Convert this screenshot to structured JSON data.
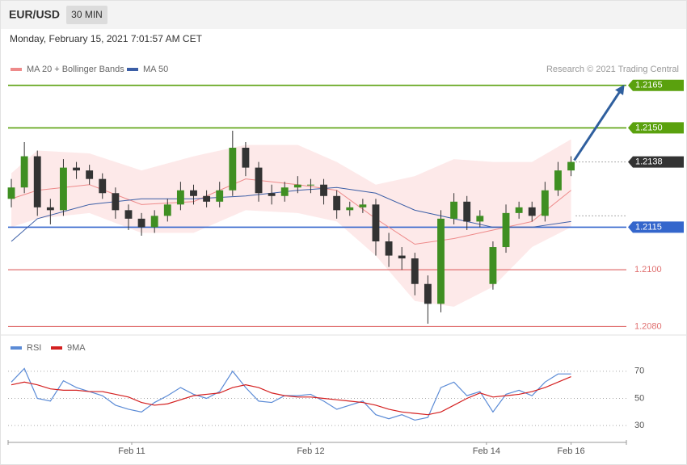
{
  "chart_data": [
    {
      "type": "candlestick",
      "title": "EUR/USD",
      "timeframe": "30 MIN",
      "subtitle": "Monday, February 15, 2021 7:01:57 AM CET",
      "credit": "Research © 2021 Trading Central",
      "xlim": [
        0,
        190
      ],
      "ylim": [
        1.2077,
        1.2178
      ],
      "up_color": "#3f8f22",
      "down_color": "#333333",
      "x": [
        1,
        5,
        9,
        13,
        17,
        21,
        25,
        29,
        33,
        37,
        41,
        45,
        49,
        53,
        57,
        61,
        65,
        69,
        73,
        77,
        81,
        85,
        89,
        93,
        97,
        101,
        105,
        109,
        113,
        117,
        121,
        125,
        129,
        133,
        137,
        141,
        145,
        149,
        153,
        157,
        161,
        165,
        169,
        173
      ],
      "open": [
        1.2125,
        1.2129,
        1.214,
        1.2122,
        1.2121,
        1.2136,
        1.2135,
        1.2132,
        1.2127,
        1.2121,
        1.2118,
        1.2115,
        1.2119,
        1.2123,
        1.2128,
        1.2126,
        1.2124,
        1.2128,
        1.2143,
        1.2136,
        1.2127,
        1.2126,
        1.2129,
        1.213,
        1.213,
        1.2126,
        1.2121,
        1.2122,
        1.2123,
        1.211,
        1.2105,
        1.2104,
        1.2095,
        1.2088,
        1.2118,
        1.2124,
        1.2117,
        1.2095,
        1.2108,
        1.212,
        1.2122,
        1.2119,
        1.2128,
        1.2135
      ],
      "high": [
        1.2132,
        1.2145,
        1.2142,
        1.2125,
        1.2139,
        1.2138,
        1.2137,
        1.2134,
        1.2129,
        1.2123,
        1.212,
        1.2121,
        1.2125,
        1.2131,
        1.213,
        1.2128,
        1.2131,
        1.2149,
        1.2145,
        1.2138,
        1.213,
        1.2131,
        1.2133,
        1.2132,
        1.2132,
        1.2128,
        1.2124,
        1.2125,
        1.2125,
        1.2113,
        1.2108,
        1.2106,
        1.2098,
        1.2121,
        1.2127,
        1.2126,
        1.2121,
        1.211,
        1.2123,
        1.2124,
        1.2124,
        1.2131,
        1.2138,
        1.214
      ],
      "low": [
        1.2122,
        1.2127,
        1.2119,
        1.2116,
        1.2119,
        1.2132,
        1.213,
        1.2125,
        1.2118,
        1.2114,
        1.2112,
        1.2113,
        1.2117,
        1.2121,
        1.2123,
        1.2122,
        1.2122,
        1.2126,
        1.2133,
        1.2124,
        1.2123,
        1.2124,
        1.2127,
        1.2127,
        1.2123,
        1.2118,
        1.2119,
        1.212,
        1.2105,
        1.2101,
        1.21,
        1.2091,
        1.2081,
        1.2085,
        1.2116,
        1.2114,
        1.2115,
        1.2093,
        1.2106,
        1.2118,
        1.2117,
        1.2117,
        1.2126,
        1.2133
      ],
      "close": [
        1.2129,
        1.214,
        1.2122,
        1.2121,
        1.2136,
        1.2135,
        1.2132,
        1.2127,
        1.2121,
        1.2118,
        1.2115,
        1.2119,
        1.2123,
        1.2128,
        1.2126,
        1.2124,
        1.2128,
        1.2143,
        1.2136,
        1.2127,
        1.2126,
        1.2129,
        1.213,
        1.213,
        1.2126,
        1.2121,
        1.2122,
        1.2123,
        1.211,
        1.2105,
        1.2104,
        1.2095,
        1.2088,
        1.2118,
        1.2124,
        1.2117,
        1.2119,
        1.2108,
        1.212,
        1.2122,
        1.2119,
        1.2128,
        1.2135,
        1.2138
      ],
      "overlays": {
        "x": [
          1,
          9,
          25,
          41,
          57,
          73,
          89,
          101,
          113,
          125,
          137,
          149,
          161,
          173
        ],
        "series": [
          {
            "name": "MA 20 + Bollinger Bands",
            "color": "#ee8a8a",
            "band_color": "#fde3e3",
            "values": [
              1.2125,
              1.2128,
              1.213,
              1.2123,
              1.2124,
              1.2132,
              1.213,
              1.2128,
              1.2118,
              1.2109,
              1.2111,
              1.2114,
              1.2117,
              1.2128
            ],
            "upper": [
              1.2134,
              1.2142,
              1.2141,
              1.2135,
              1.214,
              1.2144,
              1.2144,
              1.2138,
              1.213,
              1.2133,
              1.2139,
              1.2138,
              1.2138,
              1.2146
            ],
            "lower": [
              1.2115,
              1.2118,
              1.212,
              1.2113,
              1.2113,
              1.2121,
              1.212,
              1.2117,
              1.2105,
              1.2089,
              1.2087,
              1.2094,
              1.2108,
              1.2115
            ]
          },
          {
            "name": "MA 50",
            "color": "#3b5ea6",
            "values": [
              1.211,
              1.2118,
              1.2123,
              1.2125,
              1.2125,
              1.2126,
              1.2128,
              1.2129,
              1.2127,
              1.2121,
              1.2118,
              1.2115,
              1.2115,
              1.2117
            ]
          }
        ]
      },
      "levels": [
        {
          "value": 1.2165,
          "color": "#5aa10e",
          "boxed": true
        },
        {
          "value": 1.215,
          "label": "1.2150",
          "color": "#5aa10e",
          "boxed": true
        },
        {
          "value": 1.2115,
          "color": "#3466cc",
          "boxed": true
        },
        {
          "value": 1.21,
          "label": "1.2100",
          "color": "#e07070",
          "boxed": false
        },
        {
          "value": 1.208,
          "label": "1.2080",
          "color": "#e07070",
          "boxed": false
        }
      ],
      "last_price": {
        "value": 1.2138,
        "color": "#333333"
      },
      "arrow_color": "#2f5f9e"
    },
    {
      "type": "line",
      "xlim": [
        0,
        190
      ],
      "ylim": [
        20,
        80
      ],
      "yticks": [
        70,
        50,
        30
      ],
      "grid": true,
      "xticks": [
        {
          "value": 38,
          "label": "Feb 11"
        },
        {
          "value": 93,
          "label": "Feb 12"
        },
        {
          "value": 147,
          "label": "Feb 14"
        },
        {
          "value": 173,
          "label": "Feb 16"
        }
      ],
      "x": [
        1,
        5,
        9,
        13,
        17,
        21,
        25,
        29,
        33,
        37,
        41,
        45,
        49,
        53,
        57,
        61,
        65,
        69,
        73,
        77,
        81,
        85,
        89,
        93,
        97,
        101,
        105,
        109,
        113,
        117,
        121,
        125,
        129,
        133,
        137,
        141,
        145,
        149,
        153,
        157,
        161,
        165,
        169,
        173
      ],
      "series": [
        {
          "name": "RSI",
          "color": "#5b8bd6",
          "values": [
            62,
            72,
            50,
            48,
            63,
            58,
            55,
            52,
            45,
            42,
            40,
            47,
            52,
            58,
            53,
            50,
            55,
            70,
            58,
            48,
            47,
            52,
            52,
            53,
            48,
            42,
            45,
            48,
            38,
            35,
            38,
            34,
            36,
            58,
            62,
            52,
            55,
            40,
            53,
            56,
            52,
            62,
            68,
            68
          ]
        },
        {
          "name": "9MA",
          "color": "#d42020",
          "values": [
            60,
            62,
            60,
            57,
            56,
            56,
            55,
            55,
            53,
            51,
            47,
            45,
            46,
            49,
            52,
            53,
            54,
            58,
            60,
            58,
            54,
            52,
            51,
            51,
            50,
            49,
            48,
            47,
            45,
            42,
            40,
            39,
            38,
            40,
            45,
            50,
            54,
            51,
            52,
            53,
            55,
            58,
            62,
            66
          ]
        }
      ]
    }
  ]
}
